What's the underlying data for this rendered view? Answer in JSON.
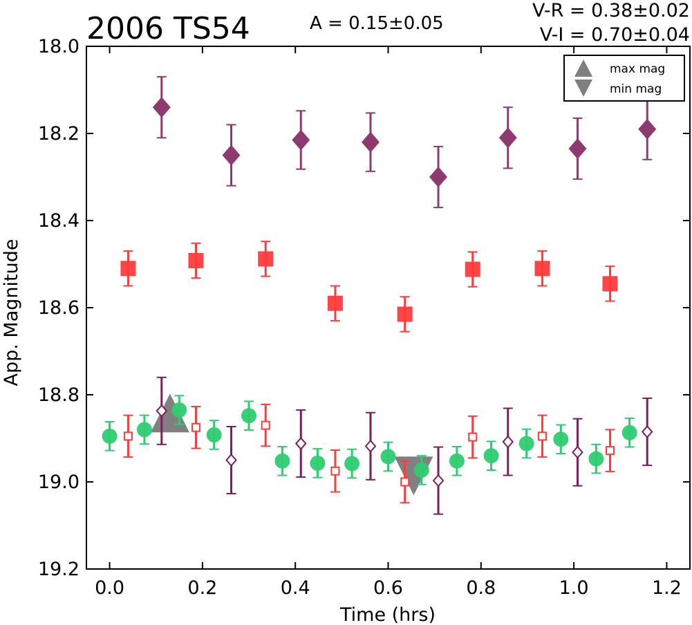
{
  "chart_data": {
    "type": "scatter",
    "title": "2006 TS54",
    "annotations": {
      "amplitude": "A  = 0.15±0.05",
      "vr": "V-R = 0.38±0.02",
      "vi": "V-I  = 0.70±0.04"
    },
    "xlabel": "Time (hrs)",
    "ylabel": "App. Magnitude",
    "xlim": [
      -0.05,
      1.25
    ],
    "ylim": [
      19.2,
      18.0
    ],
    "y_inverted": true,
    "xticks": [
      "0.0",
      "0.2",
      "0.4",
      "0.6",
      "0.8",
      "1.0",
      "1.2"
    ],
    "yticks": [
      "18.0",
      "18.2",
      "18.4",
      "18.6",
      "18.8",
      "19.0",
      "19.2"
    ],
    "grid": false,
    "legend": {
      "placement": "top-right",
      "entries": [
        "max mag",
        "min mag"
      ]
    },
    "colors": {
      "V": "#2ecc71",
      "R": "#ff3b3b",
      "I": "#7b1f5a",
      "I_light": "#8e3a6e",
      "marker": "#808080"
    },
    "series": [
      {
        "marker": "diamond-filled",
        "color": "I_light",
        "x": [
          0.112,
          0.262,
          0.412,
          0.562,
          0.708,
          0.858,
          1.008,
          1.158
        ],
        "y": [
          18.14,
          18.25,
          18.215,
          18.22,
          18.3,
          18.21,
          18.235,
          18.19
        ],
        "err": [
          0.07,
          0.07,
          0.067,
          0.067,
          0.07,
          0.07,
          0.07,
          0.07
        ]
      },
      {
        "marker": "square-filled",
        "color": "R",
        "x": [
          0.04,
          0.186,
          0.336,
          0.486,
          0.636,
          0.782,
          0.932,
          1.078
        ],
        "y": [
          18.51,
          18.492,
          18.488,
          18.59,
          18.615,
          18.512,
          18.51,
          18.545
        ],
        "err": [
          0.04,
          0.04,
          0.04,
          0.04,
          0.04,
          0.04,
          0.04,
          0.04
        ]
      },
      {
        "marker": "circle",
        "color": "V",
        "x": [
          0.0,
          0.075,
          0.15,
          0.225,
          0.3,
          0.372,
          0.448,
          0.522,
          0.6,
          0.672,
          0.748,
          0.822,
          0.898,
          0.972,
          1.048,
          1.12
        ],
        "y": [
          18.895,
          18.88,
          18.835,
          18.892,
          18.848,
          18.952,
          18.957,
          18.958,
          18.942,
          18.973,
          18.952,
          18.94,
          18.912,
          18.902,
          18.947,
          18.887
        ],
        "err": [
          0.033,
          0.033,
          0.033,
          0.033,
          0.033,
          0.033,
          0.033,
          0.033,
          0.033,
          0.033,
          0.033,
          0.033,
          0.033,
          0.033,
          0.033,
          0.033
        ]
      },
      {
        "marker": "square-open",
        "color": "R",
        "x": [
          0.04,
          0.186,
          0.336,
          0.486,
          0.636,
          0.782,
          0.932,
          1.078
        ],
        "y": [
          18.895,
          18.875,
          18.87,
          18.975,
          19.0,
          18.897,
          18.895,
          18.928
        ],
        "err": [
          0.048,
          0.048,
          0.048,
          0.048,
          0.048,
          0.048,
          0.048,
          0.048
        ]
      },
      {
        "marker": "diamond-open",
        "color": "I",
        "x": [
          0.112,
          0.262,
          0.412,
          0.562,
          0.708,
          0.858,
          1.008,
          1.158
        ],
        "y": [
          18.837,
          18.95,
          18.912,
          18.918,
          18.997,
          18.908,
          18.932,
          18.885
        ],
        "err": [
          0.077,
          0.077,
          0.077,
          0.077,
          0.077,
          0.077,
          0.077,
          0.077
        ]
      }
    ],
    "max_mag": {
      "x": 0.13,
      "y": 18.845
    },
    "min_mag": {
      "x": 0.655,
      "y": 18.98
    }
  }
}
